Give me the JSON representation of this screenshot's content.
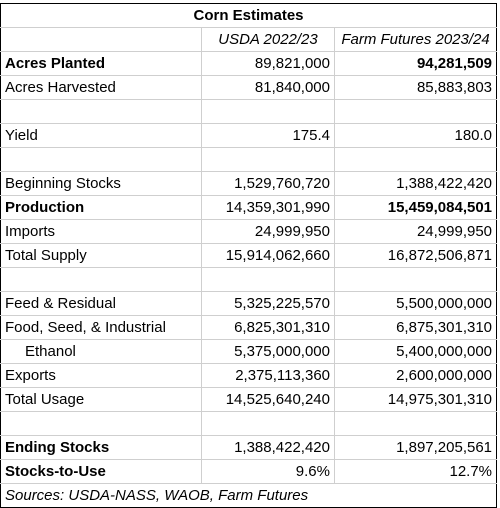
{
  "table": {
    "title": "Corn Estimates",
    "columns": [
      "",
      "USDA 2022/23",
      "Farm Futures 2023/24"
    ],
    "rows": [
      {
        "label": "Acres Planted",
        "v1": "89,821,000",
        "v2": "94,281,509",
        "label_bold": true,
        "v1_bold": false,
        "v2_bold": true
      },
      {
        "label": "Acres Harvested",
        "v1": "81,840,000",
        "v2": "85,883,803"
      },
      {
        "label": "",
        "v1": "",
        "v2": ""
      },
      {
        "label": "Yield",
        "v1": "175.4",
        "v2": "180.0"
      },
      {
        "label": "",
        "v1": "",
        "v2": ""
      },
      {
        "label": "Beginning Stocks",
        "v1": "1,529,760,720",
        "v2": "1,388,422,420"
      },
      {
        "label": "Production",
        "v1": "14,359,301,990",
        "v2": "15,459,084,501",
        "label_bold": true,
        "v2_bold": true
      },
      {
        "label": "Imports",
        "v1": "24,999,950",
        "v2": "24,999,950"
      },
      {
        "label": "Total Supply",
        "v1": "15,914,062,660",
        "v2": "16,872,506,871"
      },
      {
        "label": "",
        "v1": "",
        "v2": ""
      },
      {
        "label": "Feed & Residual",
        "v1": "5,325,225,570",
        "v2": "5,500,000,000"
      },
      {
        "label": "Food, Seed, & Industrial",
        "v1": "6,825,301,310",
        "v2": "6,875,301,310"
      },
      {
        "label": "Ethanol",
        "v1": "5,375,000,000",
        "v2": "5,400,000,000",
        "indent": true
      },
      {
        "label": "Exports",
        "v1": "2,375,113,360",
        "v2": "2,600,000,000"
      },
      {
        "label": "Total Usage",
        "v1": "14,525,640,240",
        "v2": "14,975,301,310"
      },
      {
        "label": "",
        "v1": "",
        "v2": ""
      },
      {
        "label": "Ending Stocks",
        "v1": "1,388,422,420",
        "v2": "1,897,205,561",
        "label_bold": true
      },
      {
        "label": "Stocks-to-Use",
        "v1": "9.6%",
        "v2": "12.7%",
        "label_bold": true
      }
    ],
    "source": "Sources: USDA-NASS, WAOB, Farm Futures"
  }
}
